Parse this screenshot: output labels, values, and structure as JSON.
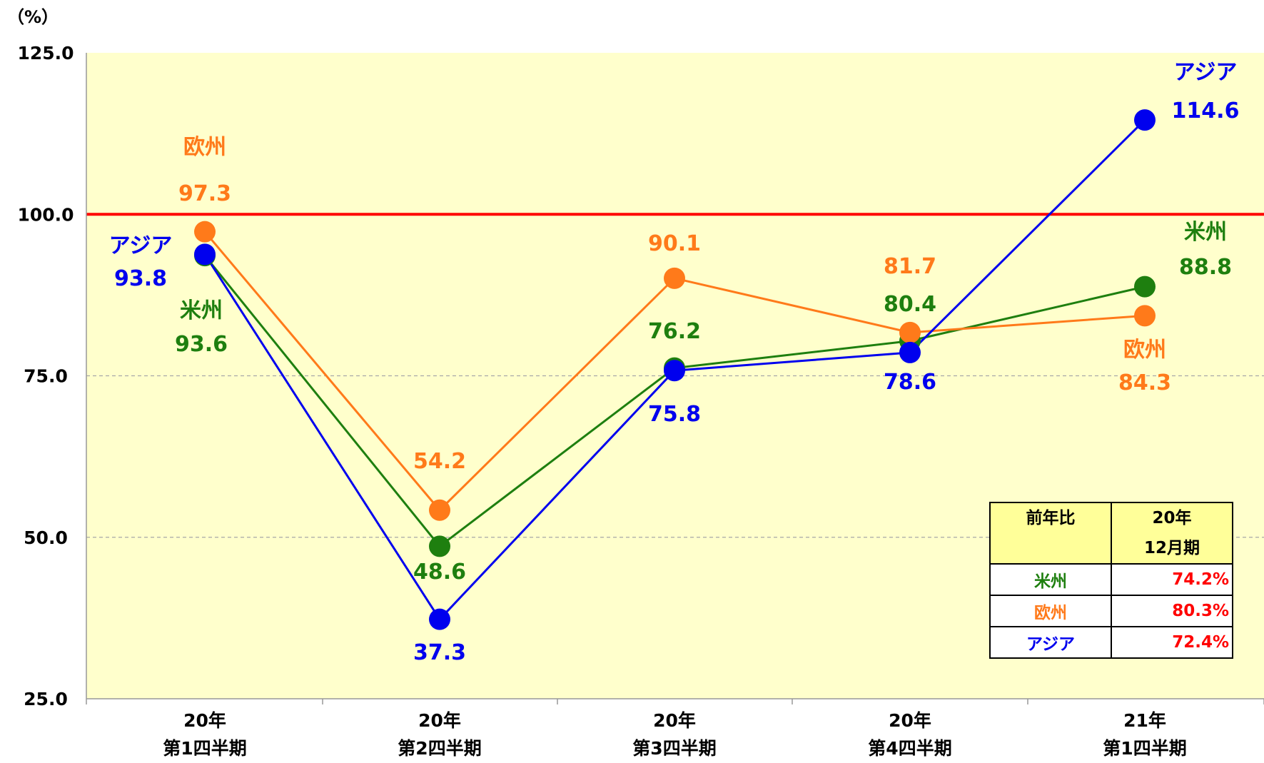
{
  "chart_data": {
    "type": "line",
    "unit": "（%）",
    "categories": [
      [
        "20年",
        "第1四半期"
      ],
      [
        "20年",
        "第2四半期"
      ],
      [
        "20年",
        "第3四半期"
      ],
      [
        "20年",
        "第4四半期"
      ],
      [
        "21年",
        "第1四半期"
      ]
    ],
    "y_ticks": [
      "125.0",
      "100.0",
      "75.0",
      "50.0",
      "25.0"
    ],
    "ylim": [
      25,
      125
    ],
    "reference_line": {
      "value": 100,
      "color": "#ff0000"
    },
    "grid": "dashed horizontal",
    "plot_background": "#ffffcc",
    "series": [
      {
        "name": "米州",
        "color": "#1e7f0f",
        "values": [
          93.6,
          48.6,
          76.2,
          80.4,
          88.8
        ]
      },
      {
        "name": "欧州",
        "color": "#ff7a1a",
        "values": [
          97.3,
          54.2,
          90.1,
          81.7,
          84.3
        ]
      },
      {
        "name": "アジア",
        "color": "#0000ee",
        "values": [
          93.8,
          37.3,
          75.8,
          78.6,
          114.6
        ]
      }
    ],
    "value_labels": [
      {
        "series": "欧州",
        "index": 0,
        "name": "欧州",
        "text": "97.3"
      },
      {
        "series": "アジア",
        "index": 0,
        "name": "アジア",
        "text": "93.8"
      },
      {
        "series": "米州",
        "index": 0,
        "name": "米州",
        "text": "93.6"
      },
      {
        "series": "欧州",
        "index": 1,
        "name": "",
        "text": "54.2"
      },
      {
        "series": "米州",
        "index": 1,
        "name": "",
        "text": "48.6"
      },
      {
        "series": "アジア",
        "index": 1,
        "name": "",
        "text": "37.3"
      },
      {
        "series": "欧州",
        "index": 2,
        "name": "",
        "text": "90.1"
      },
      {
        "series": "米州",
        "index": 2,
        "name": "",
        "text": "76.2"
      },
      {
        "series": "アジア",
        "index": 2,
        "name": "",
        "text": "75.8"
      },
      {
        "series": "欧州",
        "index": 3,
        "name": "",
        "text": "81.7"
      },
      {
        "series": "米州",
        "index": 3,
        "name": "",
        "text": "80.4"
      },
      {
        "series": "アジア",
        "index": 3,
        "name": "",
        "text": "78.6"
      },
      {
        "series": "アジア",
        "index": 4,
        "name": "アジア",
        "text": "114.6"
      },
      {
        "series": "米州",
        "index": 4,
        "name": "米州",
        "text": "88.8"
      },
      {
        "series": "欧州",
        "index": 4,
        "name": "欧州",
        "text": "84.3"
      }
    ],
    "summary_table": {
      "header": [
        "前年比",
        "20年",
        "12月期"
      ],
      "rows": [
        {
          "name": "米州",
          "value": "74.2%",
          "color": "#1e7f0f"
        },
        {
          "name": "欧州",
          "value": "80.3%",
          "color": "#ff7a1a"
        },
        {
          "name": "アジア",
          "value": "72.4%",
          "color": "#0000ee"
        }
      ]
    }
  }
}
